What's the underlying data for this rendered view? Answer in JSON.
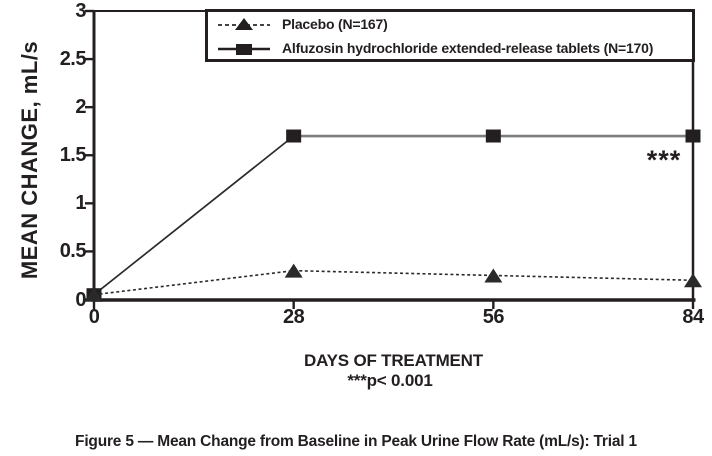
{
  "figure": {
    "caption": "Figure 5 — Mean Change from Baseline in Peak Urine Flow Rate (mL/s): Trial 1"
  },
  "colors": {
    "ink": "#231f20",
    "gray_line": "#7d7d7d"
  },
  "chart_data": {
    "type": "line",
    "xlabel": "DAYS OF TREATMENT",
    "ylabel": "MEAN CHANGE, mL/s",
    "footnote": "***p< 0.001",
    "significance_annotation": "***",
    "xlim": [
      0,
      84
    ],
    "ylim": [
      0,
      3
    ],
    "grid": false,
    "legend_position": "top-right-inside",
    "x": [
      0,
      28,
      56,
      84
    ],
    "x_ticks": [
      {
        "label": "0",
        "value": 0
      },
      {
        "label": "28",
        "value": 28
      },
      {
        "label": "56",
        "value": 56
      },
      {
        "label": "84",
        "value": 84
      }
    ],
    "y_ticks": [
      {
        "label": "3",
        "value": 3
      },
      {
        "label": "2.5",
        "value": 2.5
      },
      {
        "label": "2",
        "value": 2
      },
      {
        "label": "1.5",
        "value": 1.5
      },
      {
        "label": "1",
        "value": 1
      },
      {
        "label": "0.5",
        "value": 0.5
      },
      {
        "label": "0",
        "value": 0
      }
    ],
    "series": [
      {
        "name": "Placebo (N=167)",
        "marker": "triangle",
        "line_style": "dashed",
        "color": "#2a2a2a",
        "line_width": 1.6,
        "values": [
          0.05,
          0.3,
          0.25,
          0.2
        ]
      },
      {
        "name": "Alfuzosin hydrochloride extended-release tablets (N=170)",
        "marker": "square",
        "line_style": "solid",
        "color": "#231f20",
        "segment_colors": [
          "#2a2a2a",
          "#7d7d7d",
          "#7d7d7d"
        ],
        "segment_widths": [
          1.7,
          2.6,
          2.6
        ],
        "values": [
          0.05,
          1.7,
          1.7,
          1.7
        ]
      }
    ]
  }
}
